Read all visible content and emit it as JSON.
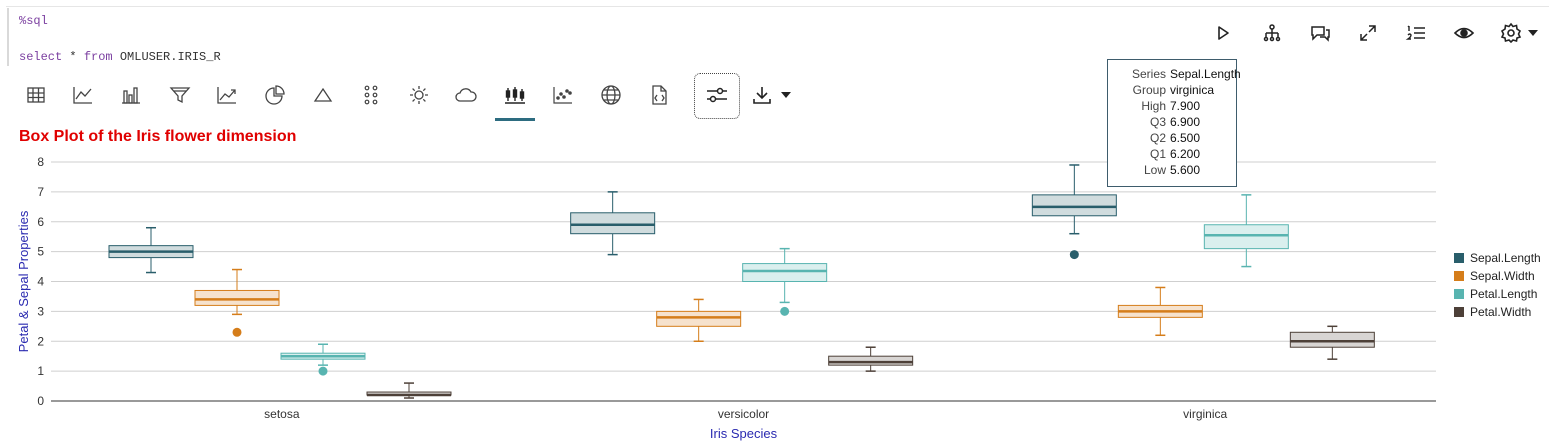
{
  "editor": {
    "magic": "%sql",
    "query_kw1": "select",
    "query_rest1": " * ",
    "query_kw2": "from",
    "query_rest2": " OMLUSER.IRIS_R"
  },
  "icons": {
    "right_toolbar": [
      "play-icon",
      "hierarchy-icon",
      "comments-icon",
      "expand-icon",
      "numbered-list-icon",
      "eye-icon",
      "gear-icon",
      "caret-down-icon"
    ],
    "chart_toolbar": [
      "table-icon",
      "line-chart-icon",
      "bar-chart-icon",
      "funnel-icon",
      "area-chart-icon",
      "pie-chart-icon",
      "pyramid-icon",
      "dots-grid-icon",
      "sunburst-icon",
      "cloud-icon",
      "boxplot-icon",
      "scatter-icon",
      "globe-icon",
      "code-file-icon",
      "settings-sliders-icon",
      "download-icon",
      "caret-down-icon"
    ]
  },
  "colors": {
    "Sepal.Length": "#295e6b",
    "Sepal.Width": "#d57d1a",
    "Petal.Length": "#58b4b0",
    "Petal.Width": "#4d4038",
    "title": "#e00000",
    "axis_label": "#2a2ab0"
  },
  "tooltip": {
    "rows": [
      {
        "k": "Series",
        "v": "Sepal.Length"
      },
      {
        "k": "Group",
        "v": "virginica"
      },
      {
        "k": "High",
        "v": "7.900"
      },
      {
        "k": "Q3",
        "v": "6.900"
      },
      {
        "k": "Q2",
        "v": "6.500"
      },
      {
        "k": "Q1",
        "v": "6.200"
      },
      {
        "k": "Low",
        "v": "5.600"
      }
    ]
  },
  "chart_data": {
    "type": "boxplot",
    "title": "Box Plot of the Iris flower dimension",
    "xlabel": "Iris Species",
    "ylabel": "Petal & Sepal Properties",
    "ylim": [
      0,
      8
    ],
    "yticks": [
      0,
      1,
      2,
      3,
      4,
      5,
      6,
      7,
      8
    ],
    "categories": [
      "setosa",
      "versicolor",
      "virginica"
    ],
    "grid": true,
    "legend_position": "right",
    "series": [
      {
        "name": "Sepal.Length",
        "boxes": [
          {
            "low": 4.3,
            "q1": 4.8,
            "q2": 5.0,
            "q3": 5.2,
            "high": 5.8,
            "outliers": []
          },
          {
            "low": 4.9,
            "q1": 5.6,
            "q2": 5.9,
            "q3": 6.3,
            "high": 7.0,
            "outliers": []
          },
          {
            "low": 5.6,
            "q1": 6.2,
            "q2": 6.5,
            "q3": 6.9,
            "high": 7.9,
            "outliers": [
              4.9
            ]
          }
        ]
      },
      {
        "name": "Sepal.Width",
        "boxes": [
          {
            "low": 2.9,
            "q1": 3.2,
            "q2": 3.4,
            "q3": 3.7,
            "high": 4.4,
            "outliers": [
              2.3
            ]
          },
          {
            "low": 2.0,
            "q1": 2.5,
            "q2": 2.8,
            "q3": 3.0,
            "high": 3.4,
            "outliers": []
          },
          {
            "low": 2.2,
            "q1": 2.8,
            "q2": 3.0,
            "q3": 3.2,
            "high": 3.8,
            "outliers": []
          }
        ]
      },
      {
        "name": "Petal.Length",
        "boxes": [
          {
            "low": 1.2,
            "q1": 1.4,
            "q2": 1.5,
            "q3": 1.6,
            "high": 1.9,
            "outliers": [
              1.0
            ]
          },
          {
            "low": 3.3,
            "q1": 4.0,
            "q2": 4.35,
            "q3": 4.6,
            "high": 5.1,
            "outliers": [
              3.0
            ]
          },
          {
            "low": 4.5,
            "q1": 5.1,
            "q2": 5.55,
            "q3": 5.9,
            "high": 6.9,
            "outliers": []
          }
        ]
      },
      {
        "name": "Petal.Width",
        "boxes": [
          {
            "low": 0.1,
            "q1": 0.2,
            "q2": 0.2,
            "q3": 0.3,
            "high": 0.6,
            "outliers": []
          },
          {
            "low": 1.0,
            "q1": 1.2,
            "q2": 1.3,
            "q3": 1.5,
            "high": 1.8,
            "outliers": []
          },
          {
            "low": 1.4,
            "q1": 1.8,
            "q2": 2.0,
            "q3": 2.3,
            "high": 2.5,
            "outliers": []
          }
        ]
      }
    ]
  }
}
